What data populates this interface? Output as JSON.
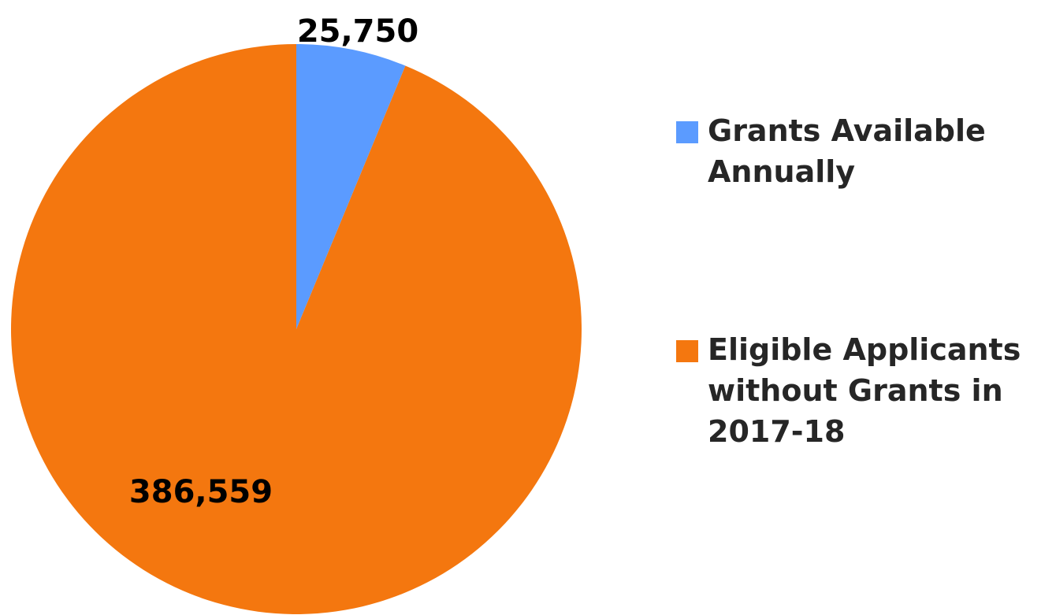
{
  "chart_data": {
    "type": "pie",
    "categories": [
      "Grants Available Annually",
      "Eligible Applicants without Grants in 2017-18"
    ],
    "values": [
      25750,
      386559
    ],
    "data_labels": [
      "25,750",
      "386,559"
    ],
    "colors": [
      "#5b9bff",
      "#f4770f"
    ],
    "start_angle_deg": 0,
    "direction": "clockwise",
    "legend_position": "right"
  }
}
